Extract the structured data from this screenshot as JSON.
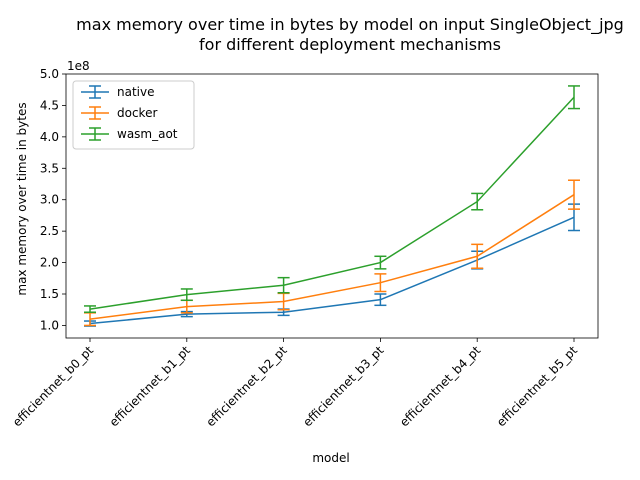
{
  "chart_data": {
    "type": "line",
    "title_line1": "max memory over time in bytes by model on input SingleObject_jpg",
    "title_line2": "for different deployment mechanisms",
    "xlabel": "model",
    "ylabel": "max memory over time in bytes",
    "y_scale_label": "1e8",
    "y_scale": 100000000,
    "ylim": [
      0.8,
      5.0
    ],
    "yticks": [
      1.0,
      1.5,
      2.0,
      2.5,
      3.0,
      3.5,
      4.0,
      4.5,
      5.0
    ],
    "ytick_labels": [
      "1.0",
      "1.5",
      "2.0",
      "2.5",
      "3.0",
      "3.5",
      "4.0",
      "4.5",
      "5.0"
    ],
    "categories": [
      "efficientnet_b0_pt",
      "efficientnet_b1_pt",
      "efficientnet_b2_pt",
      "efficientnet_b3_pt",
      "efficientnet_b4_pt",
      "efficientnet_b5_pt"
    ],
    "legend_position": "upper-left",
    "series": [
      {
        "name": "native",
        "color": "#1f77b4",
        "values": [
          1.03,
          1.18,
          1.21,
          1.41,
          2.04,
          2.72
        ],
        "errors": [
          0.04,
          0.04,
          0.05,
          0.09,
          0.14,
          0.21
        ]
      },
      {
        "name": "docker",
        "color": "#ff7f0e",
        "values": [
          1.1,
          1.3,
          1.38,
          1.68,
          2.1,
          3.08
        ],
        "errors": [
          0.1,
          0.1,
          0.13,
          0.14,
          0.19,
          0.23
        ]
      },
      {
        "name": "wasm_aot",
        "color": "#2ca02c",
        "values": [
          1.26,
          1.49,
          1.64,
          2.0,
          2.97,
          4.63
        ],
        "errors": [
          0.05,
          0.09,
          0.12,
          0.1,
          0.13,
          0.18
        ]
      }
    ]
  }
}
